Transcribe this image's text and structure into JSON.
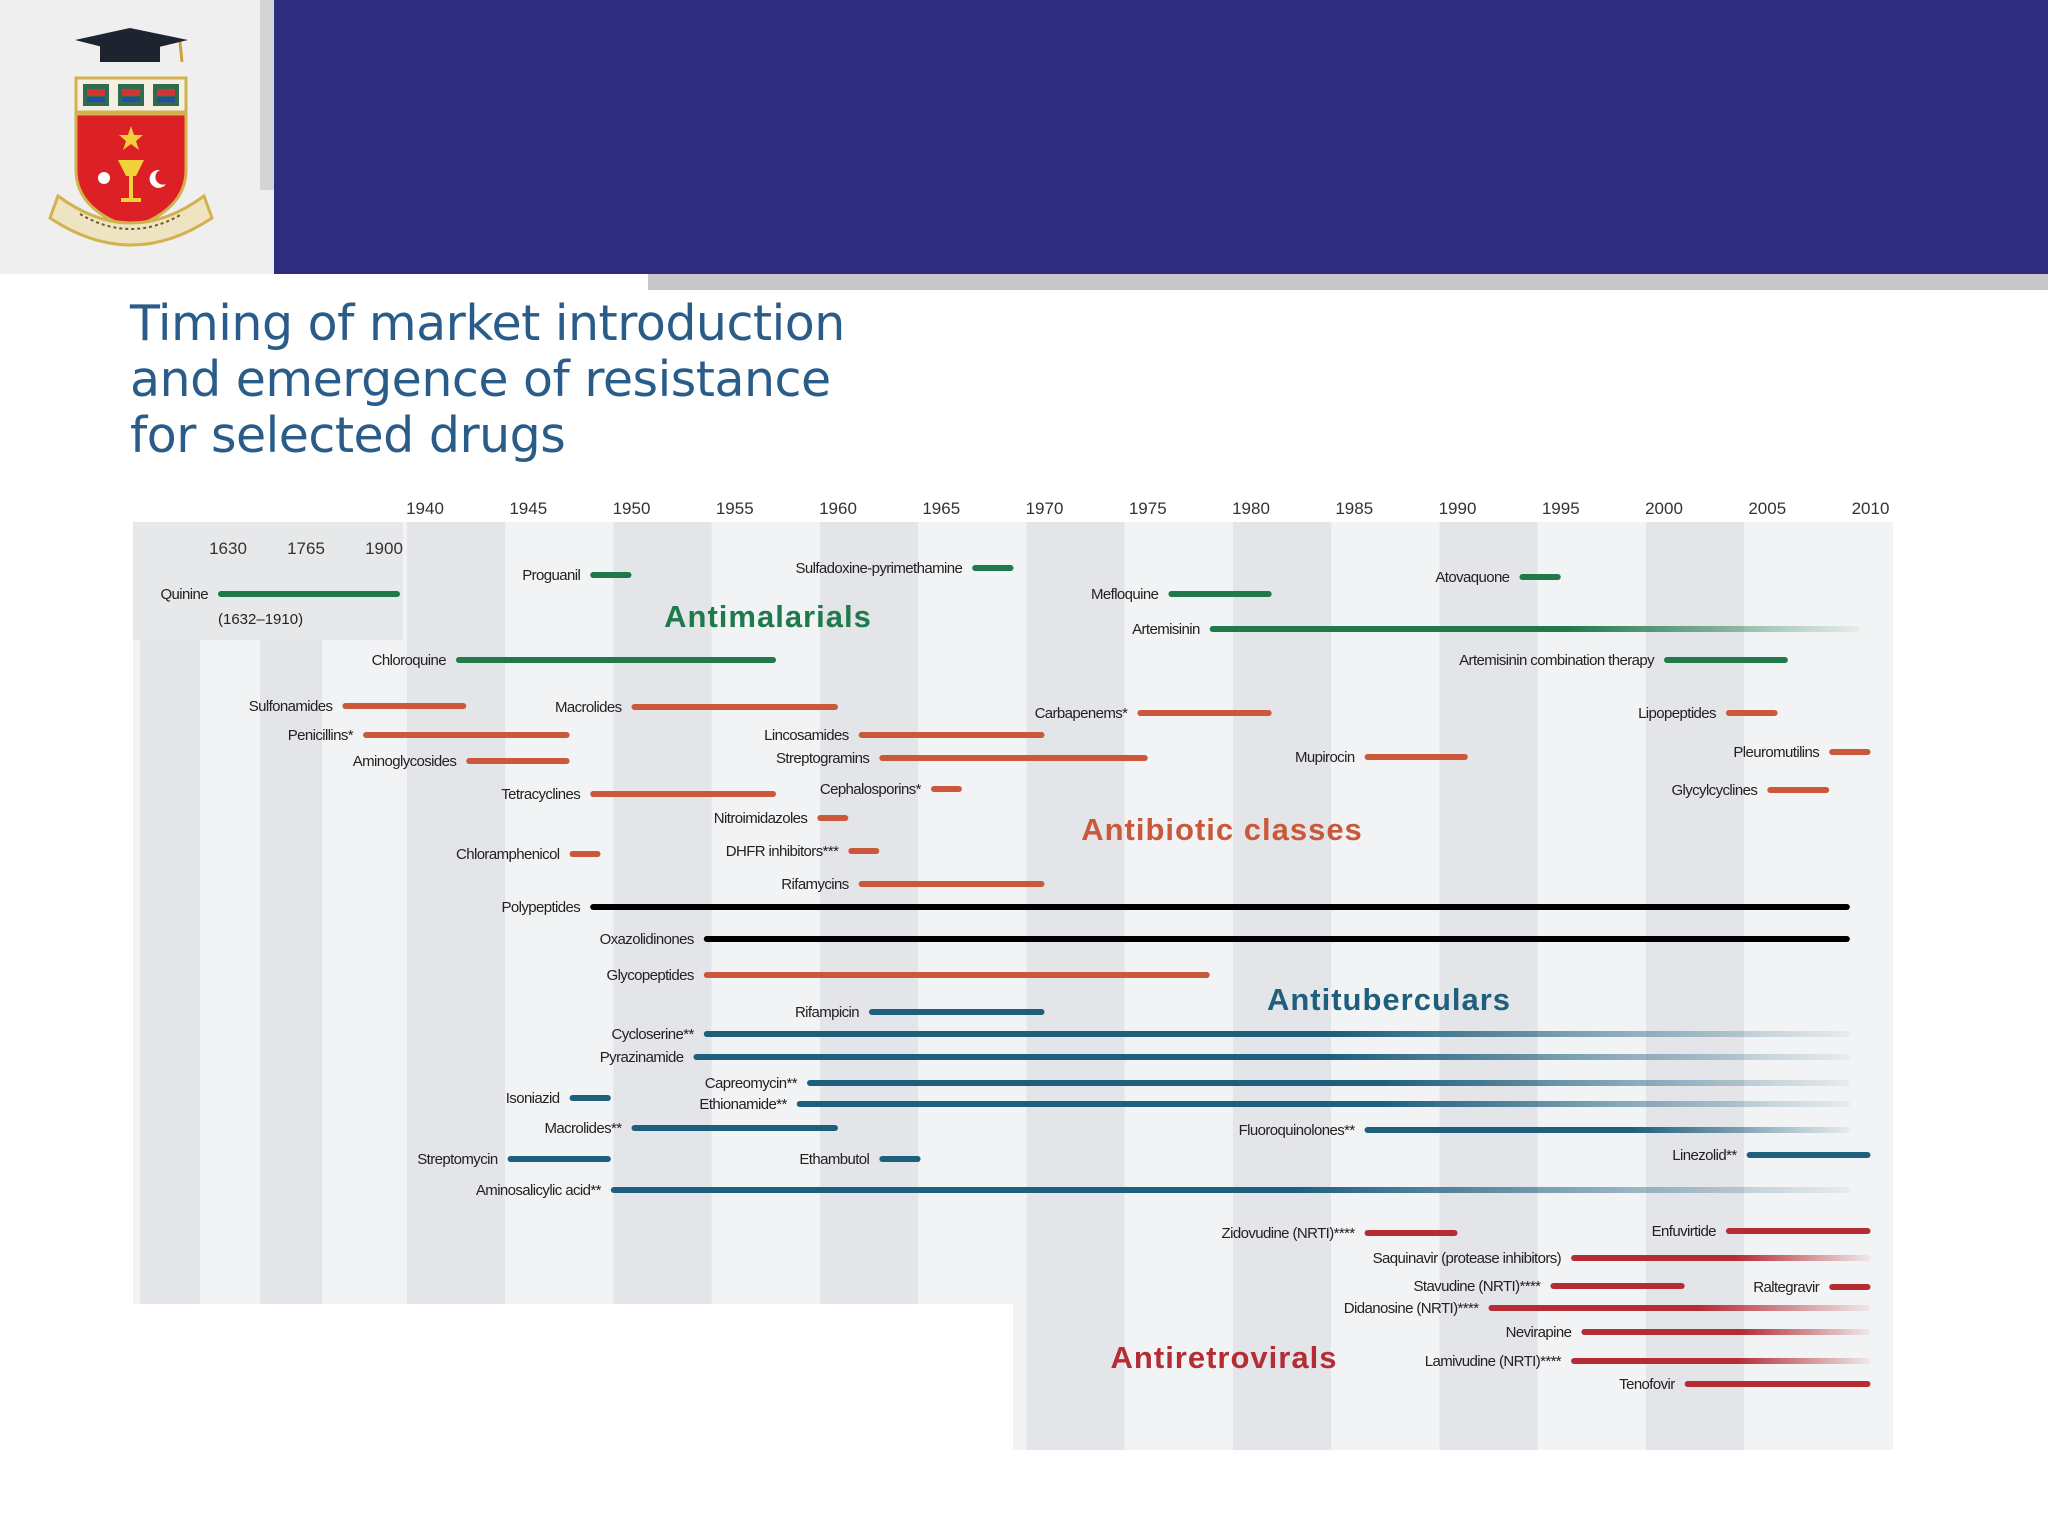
{
  "slide": {
    "title_lines": [
      "Timing of market introduction",
      "and emergence of resistance",
      "for selected drugs"
    ],
    "logo_icon": "university-crest-icon",
    "colors": {
      "header": "#2d2c7f",
      "title": "#2a5c8a"
    }
  },
  "chart_data": {
    "type": "timeline",
    "title": "Timing of market introduction and emergence of resistance for selected drugs",
    "x_unit": "year",
    "xlim": [
      1937,
      2011
    ],
    "x_ticks": [
      1940,
      1945,
      1950,
      1955,
      1960,
      1965,
      1970,
      1975,
      1980,
      1985,
      1990,
      1995,
      2000,
      2005,
      2010
    ],
    "inset_ticks": [
      "1630",
      "1765",
      "1900"
    ],
    "grid_stripes": true,
    "colors": {
      "Antimalarials": "#1e7a4b",
      "Antibiotic classes": "#c9593a",
      "Antituberculars": "#1e5f7e",
      "Antiretrovirals": "#b52c35"
    },
    "groups": [
      {
        "name": "Antimalarials",
        "items": [
          {
            "label": "Quinine",
            "note": "(1632–1910)"
          },
          {
            "label": "Proguanil",
            "start": 1948,
            "end": 1950
          },
          {
            "label": "Sulfadoxine-pyrimethamine",
            "start": 1966.5,
            "end": 1968.5
          },
          {
            "label": "Chloroquine",
            "start": 1941.5,
            "end": 1957
          },
          {
            "label": "Mefloquine",
            "start": 1976,
            "end": 1981
          },
          {
            "label": "Atovaquone",
            "start": 1993,
            "end": 1995
          },
          {
            "label": "Artemisinin",
            "start": 1978,
            "end": 2009.5
          },
          {
            "label": "Artemisinin combination therapy",
            "start": 2000,
            "end": 2006
          }
        ]
      },
      {
        "name": "Antibiotic classes",
        "items": [
          {
            "label": "Sulfonamides",
            "start": 1936,
            "end": 1942
          },
          {
            "label": "Penicillins*",
            "start": 1937,
            "end": 1947
          },
          {
            "label": "Aminoglycosides",
            "start": 1942,
            "end": 1947
          },
          {
            "label": "Macrolides",
            "start": 1950,
            "end": 1960
          },
          {
            "label": "Tetracyclines",
            "start": 1948,
            "end": 1957
          },
          {
            "label": "Lincosamides",
            "start": 1961,
            "end": 1970
          },
          {
            "label": "Streptogramins",
            "start": 1962,
            "end": 1975
          },
          {
            "label": "Cephalosporins*",
            "start": 1964.5,
            "end": 1966
          },
          {
            "label": "Nitroimidazoles",
            "start": 1959,
            "end": 1960.5
          },
          {
            "label": "Chloramphenicol",
            "start": 1947,
            "end": 1948.5
          },
          {
            "label": "DHFR inhibitors***",
            "start": 1960.5,
            "end": 1962
          },
          {
            "label": "Rifamycins",
            "start": 1961,
            "end": 1970
          },
          {
            "label": "Polypeptides",
            "start": 1948,
            "end": 2009
          },
          {
            "label": "Oxazolidinones",
            "start": 1953.5,
            "end": 2009
          },
          {
            "label": "Glycopeptides",
            "start": 1953.5,
            "end": 1978
          },
          {
            "label": "Carbapenems*",
            "start": 1974.5,
            "end": 1981
          },
          {
            "label": "Mupirocin",
            "start": 1985.5,
            "end": 1990.5
          },
          {
            "label": "Lipopeptides",
            "start": 2003,
            "end": 2005.5
          },
          {
            "label": "Pleuromutilins",
            "start": 2008,
            "end": 2010
          },
          {
            "label": "Glycylcyclines",
            "start": 2005,
            "end": 2008
          }
        ]
      },
      {
        "name": "Antituberculars",
        "items": [
          {
            "label": "Rifampicin",
            "start": 1961.5,
            "end": 1970
          },
          {
            "label": "Cycloserine**",
            "start": 1953.5,
            "end": 2009
          },
          {
            "label": "Pyrazinamide",
            "start": 1953,
            "end": 2009
          },
          {
            "label": "Capreomycin**",
            "start": 1958.5,
            "end": 2009
          },
          {
            "label": "Isoniazid",
            "start": 1947,
            "end": 1949
          },
          {
            "label": "Ethionamide**",
            "start": 1958,
            "end": 2009
          },
          {
            "label": "Macrolides**",
            "start": 1950,
            "end": 1960
          },
          {
            "label": "Streptomycin",
            "start": 1944,
            "end": 1949
          },
          {
            "label": "Ethambutol",
            "start": 1962,
            "end": 1964
          },
          {
            "label": "Aminosalicylic acid**",
            "start": 1949,
            "end": 2009
          },
          {
            "label": "Fluoroquinolones**",
            "start": 1985.5,
            "end": 2009
          },
          {
            "label": "Linezolid**",
            "start": 2004,
            "end": 2010
          }
        ]
      },
      {
        "name": "Antiretrovirals",
        "items": [
          {
            "label": "Zidovudine (NRTI)****",
            "start": 1985.5,
            "end": 1990
          },
          {
            "label": "Saquinavir (protease inhibitors)",
            "start": 1995.5,
            "end": 2010
          },
          {
            "label": "Stavudine (NRTI)****",
            "start": 1994.5,
            "end": 2001
          },
          {
            "label": "Didanosine (NRTI)****",
            "start": 1991.5,
            "end": 2010
          },
          {
            "label": "Nevirapine",
            "start": 1996,
            "end": 2010
          },
          {
            "label": "Lamivudine (NRTI)****",
            "start": 1995.5,
            "end": 2010
          },
          {
            "label": "Tenofovir",
            "start": 2001,
            "end": 2010
          },
          {
            "label": "Enfuvirtide",
            "start": 2003,
            "end": 2010
          },
          {
            "label": "Raltegravir",
            "start": 2008,
            "end": 2010
          }
        ]
      }
    ]
  }
}
